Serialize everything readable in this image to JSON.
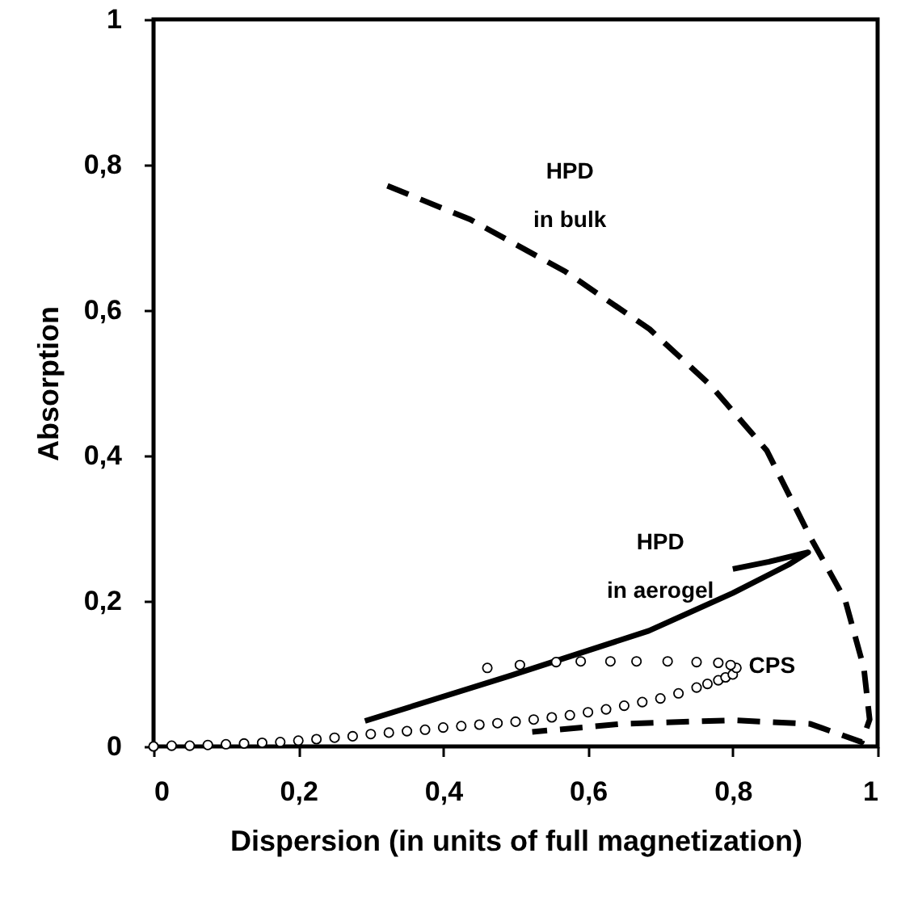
{
  "chart_data": {
    "type": "line",
    "xlabel": "Dispersion (in units of full magnetization)",
    "ylabel": "Absorption",
    "xlim": [
      0,
      1
    ],
    "ylim": [
      0,
      1
    ],
    "xticks": [
      0,
      {
        "value": 0.2,
        "label": "0,2"
      },
      {
        "value": 0.4,
        "label": "0,4"
      },
      {
        "value": 0.6,
        "label": "0,6"
      },
      {
        "value": 0.8,
        "label": "0,8"
      },
      1
    ],
    "yticks": [
      0,
      {
        "value": 0.2,
        "label": "0,2"
      },
      {
        "value": 0.4,
        "label": "0,4"
      },
      {
        "value": 0.6,
        "label": "0,6"
      },
      {
        "value": 0.8,
        "label": "0,8"
      },
      1
    ],
    "grid": false,
    "series": [
      {
        "name": "HPD\nin bulk",
        "line_style": "dashed",
        "color": "#000000",
        "x": [
          0.323,
          0.437,
          0.569,
          0.685,
          0.769,
          0.847,
          0.907,
          0.955,
          0.981,
          0.989,
          0.978,
          0.907,
          0.8,
          0.646,
          0.523
        ],
        "values": [
          0.771,
          0.725,
          0.653,
          0.574,
          0.497,
          0.407,
          0.288,
          0.202,
          0.108,
          0.037,
          0.006,
          0.031,
          0.036,
          0.031,
          0.02
        ]
      },
      {
        "name": "HPD\nin aerogel",
        "line_style": "solid",
        "color": "#000000",
        "x": [
          0.292,
          0.492,
          0.684,
          0.8,
          0.877,
          0.904,
          0.85,
          0.8
        ],
        "values": [
          0.035,
          0.097,
          0.159,
          0.211,
          0.25,
          0.267,
          0.254,
          0.244
        ]
      },
      {
        "name": "CPS",
        "type": "scatter",
        "marker": "circle",
        "color": "#000000",
        "x": [
          0,
          0.025,
          0.05,
          0.075,
          0.1,
          0.125,
          0.15,
          0.175,
          0.2,
          0.225,
          0.25,
          0.275,
          0.3,
          0.325,
          0.35,
          0.375,
          0.4,
          0.425,
          0.45,
          0.475,
          0.5,
          0.525,
          0.55,
          0.575,
          0.6,
          0.625,
          0.65,
          0.675,
          0.7,
          0.725,
          0.75,
          0.765,
          0.78,
          0.79,
          0.8,
          0.805,
          0.797,
          0.78,
          0.75,
          0.71,
          0.667,
          0.631,
          0.59,
          0.556,
          0.506,
          0.461
        ],
        "values": [
          0,
          0.001,
          0.001,
          0.002,
          0.003,
          0.004,
          0.005,
          0.006,
          0.008,
          0.01,
          0.012,
          0.014,
          0.017,
          0.019,
          0.021,
          0.023,
          0.026,
          0.028,
          0.03,
          0.032,
          0.034,
          0.037,
          0.04,
          0.043,
          0.047,
          0.051,
          0.056,
          0.061,
          0.066,
          0.073,
          0.081,
          0.086,
          0.091,
          0.095,
          0.099,
          0.108,
          0.112,
          0.115,
          0.116,
          0.117,
          0.117,
          0.117,
          0.117,
          0.116,
          0.112,
          0.108
        ]
      }
    ]
  }
}
